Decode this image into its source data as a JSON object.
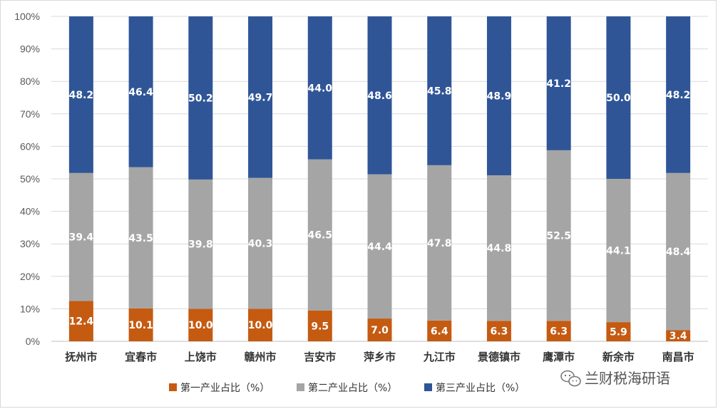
{
  "chart_data": {
    "type": "bar",
    "stacked": true,
    "percent_stacked": true,
    "categories": [
      "抚州市",
      "宜春市",
      "上饶市",
      "赣州市",
      "吉安市",
      "萍乡市",
      "九江市",
      "景德镇市",
      "鹰潭市",
      "新余市",
      "南昌市"
    ],
    "series": [
      {
        "name": "第一产业占比（%）",
        "color": "#c55a11",
        "values": [
          12.4,
          10.1,
          10.0,
          10.0,
          9.5,
          7.0,
          6.4,
          6.3,
          6.3,
          5.9,
          3.4
        ]
      },
      {
        "name": "第二产业占比（%）",
        "color": "#a5a5a5",
        "values": [
          39.4,
          43.5,
          39.8,
          40.3,
          46.5,
          44.4,
          47.8,
          44.8,
          52.5,
          44.1,
          48.4
        ]
      },
      {
        "name": "第三产业占比（%）",
        "color": "#2f5597",
        "values": [
          48.2,
          46.4,
          50.2,
          49.7,
          44.0,
          48.6,
          45.8,
          48.9,
          41.2,
          50.0,
          48.2
        ]
      }
    ],
    "y_ticks": [
      "0%",
      "10%",
      "20%",
      "30%",
      "40%",
      "50%",
      "60%",
      "70%",
      "80%",
      "90%",
      "100%"
    ],
    "ylim": [
      0,
      100
    ],
    "grid": true,
    "legend_position": "bottom",
    "title": "",
    "xlabel": "",
    "ylabel": ""
  },
  "watermark": {
    "icon": "wechat-icon",
    "text": "兰财税海研语"
  }
}
